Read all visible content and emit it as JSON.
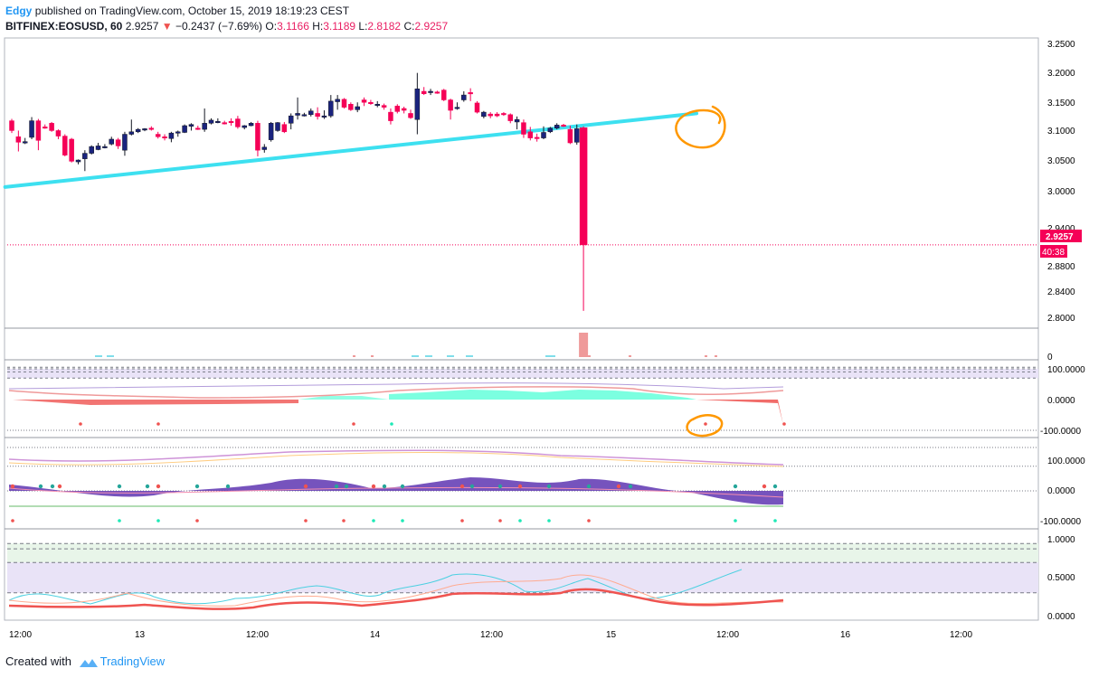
{
  "header": {
    "author": "Edgy",
    "published_text": "published on TradingView.com, October 15, 2019 18:19:23 CEST",
    "symbol": "BITFINEX:EOSUSD, 60",
    "last_price": "2.9257",
    "change_arrow": "▼",
    "change": "−0.2437 (−7.69%)",
    "o_label": "O:",
    "o_value": "3.1166",
    "h_label": "H:",
    "h_value": "3.1189",
    "l_label": "L:",
    "l_value": "2.8182",
    "c_label": "C:",
    "c_value": "2.9257"
  },
  "price_axis": {
    "ticks": [
      "3.2500",
      "3.2000",
      "3.1500",
      "3.1000",
      "3.0500",
      "3.0000",
      "2.9400",
      "2.8800",
      "2.8400",
      "2.8000"
    ],
    "current_price_label": "2.9257",
    "countdown_label": "40:38"
  },
  "volume_axis": {
    "ticks": [
      "0"
    ]
  },
  "osc1_axis": {
    "ticks": [
      "100.0000",
      "0.0000",
      "-100.0000"
    ]
  },
  "osc2_axis": {
    "ticks": [
      "100.0000",
      "0.0000",
      "-100.0000"
    ]
  },
  "osc3_axis": {
    "ticks": [
      "1.0000",
      "0.5000",
      "0.0000"
    ]
  },
  "time_axis": {
    "ticks": [
      "12:00",
      "13",
      "12:00",
      "14",
      "12:00",
      "15",
      "12:00",
      "16",
      "12:00"
    ]
  },
  "footer": {
    "created_with": "Created with",
    "brand": "TradingView"
  },
  "colors": {
    "bull": "#131722",
    "bear": "#f50057",
    "trendline": "#3de0f0",
    "annotation": "#ff9800",
    "current_price": "#f50057",
    "osc_fill_pos": "#64ffda",
    "osc_fill_neg": "#ef5350",
    "band": "#e9e3f7",
    "purple": "#5e35b1"
  },
  "chart_data": {
    "type": "candlestick",
    "symbol": "BITFINEX:EOSUSD",
    "interval": "60",
    "ylim": [
      2.79,
      3.26
    ],
    "candles": [
      {
        "o": 3.128,
        "h": 3.131,
        "l": 3.108,
        "c": 3.112
      },
      {
        "o": 3.102,
        "h": 3.112,
        "l": 3.078,
        "c": 3.093
      },
      {
        "o": 3.093,
        "h": 3.1,
        "l": 3.09,
        "c": 3.094
      },
      {
        "o": 3.101,
        "h": 3.134,
        "l": 3.098,
        "c": 3.128
      },
      {
        "o": 3.128,
        "h": 3.131,
        "l": 3.08,
        "c": 3.096
      },
      {
        "o": 3.118,
        "h": 3.122,
        "l": 3.115,
        "c": 3.117
      },
      {
        "o": 3.124,
        "h": 3.126,
        "l": 3.11,
        "c": 3.112
      },
      {
        "o": 3.112,
        "h": 3.114,
        "l": 3.098,
        "c": 3.103
      },
      {
        "o": 3.103,
        "h": 3.106,
        "l": 3.07,
        "c": 3.072
      },
      {
        "o": 3.098,
        "h": 3.1,
        "l": 3.06,
        "c": 3.062
      },
      {
        "o": 3.061,
        "h": 3.065,
        "l": 3.057,
        "c": 3.064
      },
      {
        "o": 3.066,
        "h": 3.08,
        "l": 3.046,
        "c": 3.075
      },
      {
        "o": 3.075,
        "h": 3.088,
        "l": 3.073,
        "c": 3.086
      },
      {
        "o": 3.081,
        "h": 3.092,
        "l": 3.08,
        "c": 3.087
      },
      {
        "o": 3.085,
        "h": 3.09,
        "l": 3.083,
        "c": 3.086
      },
      {
        "o": 3.09,
        "h": 3.102,
        "l": 3.088,
        "c": 3.098
      },
      {
        "o": 3.097,
        "h": 3.1,
        "l": 3.082,
        "c": 3.087
      },
      {
        "o": 3.08,
        "h": 3.11,
        "l": 3.071,
        "c": 3.106
      },
      {
        "o": 3.106,
        "h": 3.13,
        "l": 3.104,
        "c": 3.11
      },
      {
        "o": 3.11,
        "h": 3.116,
        "l": 3.108,
        "c": 3.114
      },
      {
        "o": 3.113,
        "h": 3.116,
        "l": 3.111,
        "c": 3.115
      },
      {
        "o": 3.116,
        "h": 3.119,
        "l": 3.112,
        "c": 3.114
      },
      {
        "o": 3.106,
        "h": 3.11,
        "l": 3.099,
        "c": 3.102
      },
      {
        "o": 3.102,
        "h": 3.106,
        "l": 3.096,
        "c": 3.1
      },
      {
        "o": 3.099,
        "h": 3.11,
        "l": 3.093,
        "c": 3.108
      },
      {
        "o": 3.109,
        "h": 3.112,
        "l": 3.102,
        "c": 3.11
      },
      {
        "o": 3.109,
        "h": 3.122,
        "l": 3.108,
        "c": 3.12
      },
      {
        "o": 3.119,
        "h": 3.124,
        "l": 3.112,
        "c": 3.122
      },
      {
        "o": 3.116,
        "h": 3.12,
        "l": 3.113,
        "c": 3.115
      },
      {
        "o": 3.114,
        "h": 3.148,
        "l": 3.11,
        "c": 3.124
      },
      {
        "o": 3.124,
        "h": 3.132,
        "l": 3.122,
        "c": 3.129
      },
      {
        "o": 3.126,
        "h": 3.132,
        "l": 3.124,
        "c": 3.127
      },
      {
        "o": 3.125,
        "h": 3.128,
        "l": 3.122,
        "c": 3.124
      },
      {
        "o": 3.127,
        "h": 3.132,
        "l": 3.12,
        "c": 3.125
      },
      {
        "o": 3.131,
        "h": 3.136,
        "l": 3.115,
        "c": 3.118
      },
      {
        "o": 3.117,
        "h": 3.121,
        "l": 3.114,
        "c": 3.12
      },
      {
        "o": 3.12,
        "h": 3.126,
        "l": 3.119,
        "c": 3.124
      },
      {
        "o": 3.124,
        "h": 3.128,
        "l": 3.07,
        "c": 3.08
      },
      {
        "o": 3.081,
        "h": 3.09,
        "l": 3.076,
        "c": 3.085
      },
      {
        "o": 3.097,
        "h": 3.126,
        "l": 3.094,
        "c": 3.124
      },
      {
        "o": 3.112,
        "h": 3.126,
        "l": 3.11,
        "c": 3.125
      },
      {
        "o": 3.122,
        "h": 3.126,
        "l": 3.108,
        "c": 3.11
      },
      {
        "o": 3.124,
        "h": 3.14,
        "l": 3.114,
        "c": 3.136
      },
      {
        "o": 3.137,
        "h": 3.166,
        "l": 3.13,
        "c": 3.14
      },
      {
        "o": 3.138,
        "h": 3.141,
        "l": 3.135,
        "c": 3.138
      },
      {
        "o": 3.138,
        "h": 3.148,
        "l": 3.135,
        "c": 3.144
      },
      {
        "o": 3.14,
        "h": 3.15,
        "l": 3.13,
        "c": 3.135
      },
      {
        "o": 3.134,
        "h": 3.145,
        "l": 3.131,
        "c": 3.136
      },
      {
        "o": 3.136,
        "h": 3.17,
        "l": 3.133,
        "c": 3.16
      },
      {
        "o": 3.159,
        "h": 3.17,
        "l": 3.146,
        "c": 3.163
      },
      {
        "o": 3.163,
        "h": 3.165,
        "l": 3.148,
        "c": 3.15
      },
      {
        "o": 3.155,
        "h": 3.158,
        "l": 3.144,
        "c": 3.146
      },
      {
        "o": 3.146,
        "h": 3.158,
        "l": 3.142,
        "c": 3.151
      },
      {
        "o": 3.162,
        "h": 3.166,
        "l": 3.152,
        "c": 3.158
      },
      {
        "o": 3.158,
        "h": 3.162,
        "l": 3.154,
        "c": 3.157
      },
      {
        "o": 3.154,
        "h": 3.16,
        "l": 3.15,
        "c": 3.155
      },
      {
        "o": 3.153,
        "h": 3.156,
        "l": 3.146,
        "c": 3.15
      },
      {
        "o": 3.142,
        "h": 3.148,
        "l": 3.122,
        "c": 3.128
      },
      {
        "o": 3.152,
        "h": 3.155,
        "l": 3.14,
        "c": 3.143
      },
      {
        "o": 3.148,
        "h": 3.151,
        "l": 3.14,
        "c": 3.145
      },
      {
        "o": 3.14,
        "h": 3.146,
        "l": 3.131,
        "c": 3.133
      },
      {
        "o": 3.13,
        "h": 3.206,
        "l": 3.106,
        "c": 3.18
      },
      {
        "o": 3.176,
        "h": 3.183,
        "l": 3.17,
        "c": 3.172
      },
      {
        "o": 3.174,
        "h": 3.18,
        "l": 3.17,
        "c": 3.176
      },
      {
        "o": 3.175,
        "h": 3.177,
        "l": 3.172,
        "c": 3.174
      },
      {
        "o": 3.178,
        "h": 3.18,
        "l": 3.16,
        "c": 3.162
      },
      {
        "o": 3.162,
        "h": 3.164,
        "l": 3.13,
        "c": 3.145
      },
      {
        "o": 3.148,
        "h": 3.158,
        "l": 3.146,
        "c": 3.15
      },
      {
        "o": 3.162,
        "h": 3.176,
        "l": 3.159,
        "c": 3.17
      },
      {
        "o": 3.174,
        "h": 3.181,
        "l": 3.16,
        "c": 3.172
      },
      {
        "o": 3.157,
        "h": 3.16,
        "l": 3.14,
        "c": 3.142
      },
      {
        "o": 3.135,
        "h": 3.144,
        "l": 3.132,
        "c": 3.142
      },
      {
        "o": 3.139,
        "h": 3.142,
        "l": 3.132,
        "c": 3.136
      },
      {
        "o": 3.139,
        "h": 3.142,
        "l": 3.134,
        "c": 3.136
      },
      {
        "o": 3.14,
        "h": 3.142,
        "l": 3.136,
        "c": 3.138
      },
      {
        "o": 3.138,
        "h": 3.14,
        "l": 3.124,
        "c": 3.128
      },
      {
        "o": 3.126,
        "h": 3.135,
        "l": 3.114,
        "c": 3.13
      },
      {
        "o": 3.125,
        "h": 3.13,
        "l": 3.1,
        "c": 3.106
      },
      {
        "o": 3.11,
        "h": 3.118,
        "l": 3.096,
        "c": 3.1
      },
      {
        "o": 3.101,
        "h": 3.107,
        "l": 3.094,
        "c": 3.099
      },
      {
        "o": 3.1,
        "h": 3.119,
        "l": 3.098,
        "c": 3.109
      },
      {
        "o": 3.11,
        "h": 3.118,
        "l": 3.108,
        "c": 3.116
      },
      {
        "o": 3.116,
        "h": 3.124,
        "l": 3.114,
        "c": 3.121
      },
      {
        "o": 3.121,
        "h": 3.123,
        "l": 3.118,
        "c": 3.12
      },
      {
        "o": 3.114,
        "h": 3.12,
        "l": 3.09,
        "c": 3.092
      },
      {
        "o": 3.093,
        "h": 3.122,
        "l": 3.089,
        "c": 3.115
      },
      {
        "o": 3.1166,
        "h": 3.1189,
        "l": 2.8182,
        "c": 2.9257
      }
    ],
    "trendline": {
      "from": {
        "bar": -1,
        "price": 3.02
      },
      "to": {
        "bar": 103,
        "price": 3.14
      }
    },
    "current_price": 2.9257,
    "volume": [
      0,
      0,
      0,
      0,
      0,
      0,
      0,
      0,
      0,
      0,
      0,
      0,
      0,
      0,
      0,
      0,
      0,
      0,
      0,
      0,
      0,
      0,
      0,
      0,
      0,
      0,
      0,
      0,
      0,
      0,
      0,
      0,
      0,
      0,
      0,
      0,
      0,
      0,
      0,
      0,
      0,
      0,
      0,
      0,
      0,
      0,
      0,
      0,
      0,
      0,
      0,
      0,
      0,
      0,
      0,
      0,
      0,
      0,
      0,
      0,
      0,
      0,
      0,
      0,
      0,
      0,
      0,
      0,
      0,
      0,
      0,
      0,
      0,
      0,
      0,
      0,
      0,
      0,
      0,
      0,
      0,
      0,
      0,
      0,
      0,
      0,
      0,
      0,
      0,
      0
    ],
    "osc1": {
      "ylim": [
        -110,
        110
      ],
      "upper_levels": [
        100,
        90,
        70
      ],
      "lower_level": -100,
      "values": [
        -8,
        -8,
        -7,
        -7,
        -7,
        -6,
        -7,
        -7,
        -8,
        -8,
        -8,
        -8,
        -8,
        -8,
        -8,
        -8,
        -8,
        -8,
        -8,
        -8,
        -8,
        -8,
        -8,
        -8,
        -8,
        -8,
        -8,
        -8,
        -8,
        -8,
        -7,
        -7,
        -7,
        -6,
        -6,
        -7,
        -7,
        -7,
        -8,
        -8,
        -8,
        -8,
        -8,
        -8,
        -7,
        -7,
        -6,
        -6,
        -6,
        -6,
        -6,
        -6,
        -6,
        -6,
        -6,
        -6,
        -6,
        -5,
        -5,
        -5,
        -5,
        -5,
        -5,
        -5,
        -5,
        -5,
        -4,
        -4,
        -4,
        -4,
        -4,
        -4,
        -4,
        -4,
        -4,
        -4,
        -4,
        -4,
        -4,
        -4,
        -4,
        -4,
        -4,
        -4,
        -4,
        -4,
        -4,
        -4,
        -4,
        -4,
        -4,
        -4,
        -4,
        -4,
        -4,
        -4,
        -4,
        -4,
        -4,
        -4,
        -4,
        -4,
        -4,
        -4,
        -4,
        -4,
        -4,
        -4,
        -4,
        -4,
        -4,
        -4,
        -4,
        -4,
        -4,
        -4,
        -4,
        -4,
        -4,
        -4,
        -4,
        -4,
        -4,
        -4,
        -4,
        -4,
        -4,
        -4,
        -4,
        -4,
        -4,
        -4,
        -4,
        -4,
        -4,
        -4,
        -4,
        -4,
        -4,
        -4,
        -4,
        -4,
        -4,
        -4,
        -4,
        -4,
        -4,
        -4,
        -4,
        -4,
        -4,
        -4,
        -4,
        -4,
        -4,
        -4,
        -4,
        -4,
        -4,
        -4,
        -4,
        -4,
        -4,
        -4,
        -4,
        -4,
        -4,
        -4,
        -4,
        -4,
        -4,
        -4,
        -4,
        -4,
        -4,
        -4,
        -4,
        -4,
        -4,
        -4,
        -4,
        -4,
        -4,
        -4,
        -4,
        -4,
        -4,
        -4,
        -4,
        -4,
        -4,
        -4,
        -4,
        -4,
        -4,
        -4,
        -4,
        -4,
        -4,
        -4,
        -4,
        -4,
        -4,
        -4,
        -4,
        -4,
        -4,
        -4,
        -4,
        -4,
        -4,
        -4
      ]
    },
    "osc2": {
      "ylim": [
        -110,
        110
      ],
      "levels": [
        80,
        0,
        -60
      ]
    },
    "osc3": {
      "ylim": [
        0,
        1.05
      ],
      "levels": [
        0.95,
        0.88,
        0.7,
        0.3
      ]
    }
  }
}
